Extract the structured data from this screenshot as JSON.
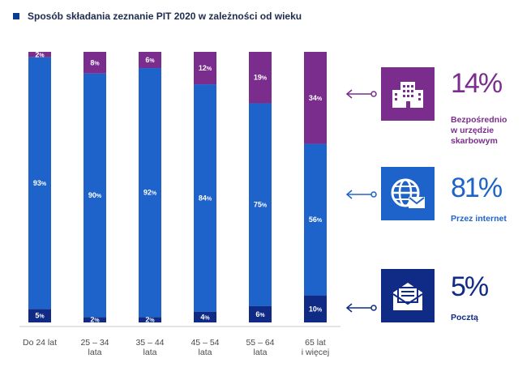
{
  "title": "Sposób składania zeznanie PIT 2020 w zależności od wieku",
  "colors": {
    "purple": "#7b2d8e",
    "blue": "#1e63c9",
    "navy": "#0f2b86",
    "grid": "#c8c8c8",
    "title_square": "#0b3d91"
  },
  "chart_data": {
    "type": "bar",
    "stacked": true,
    "orientation": "vertical",
    "categories": [
      [
        "Do 24 lat"
      ],
      [
        "25 – 34",
        "lata"
      ],
      [
        "35 – 44",
        "lata"
      ],
      [
        "45 – 54",
        "lata"
      ],
      [
        "55 – 64",
        "lata"
      ],
      [
        "65 lat",
        "i więcej"
      ]
    ],
    "series": [
      {
        "name": "Poczta",
        "color": "navy",
        "values": [
          5,
          2,
          2,
          4,
          6,
          10
        ],
        "labels": [
          "5%",
          "2%",
          "2%",
          "4%",
          "6%",
          "10%"
        ]
      },
      {
        "name": "Przez internet",
        "color": "blue",
        "values": [
          93,
          90,
          92,
          84,
          75,
          56
        ],
        "labels": [
          "93%",
          "90%",
          "92%",
          "84%",
          "75%",
          "56%"
        ]
      },
      {
        "name": "Bezpośrednio w urzędzie skarbowym",
        "color": "purple",
        "values": [
          2,
          8,
          6,
          12,
          19,
          34
        ],
        "labels": [
          "2%",
          "8%",
          "6%",
          "12%",
          "19%",
          "34%"
        ]
      }
    ],
    "ylim": [
      0,
      100
    ],
    "legend_placement": "right"
  },
  "legend": [
    {
      "icon": "office-building-icon",
      "color": "purple",
      "percent": "14%",
      "lines": [
        "Bezpośrednio",
        "w urzędzie",
        "skarbowym"
      ]
    },
    {
      "icon": "globe-mail-icon",
      "color": "blue",
      "percent": "81%",
      "lines": [
        "Przez internet"
      ]
    },
    {
      "icon": "envelope-letter-icon",
      "color": "navy",
      "percent": "5%",
      "lines": [
        "Pocztą"
      ]
    }
  ]
}
